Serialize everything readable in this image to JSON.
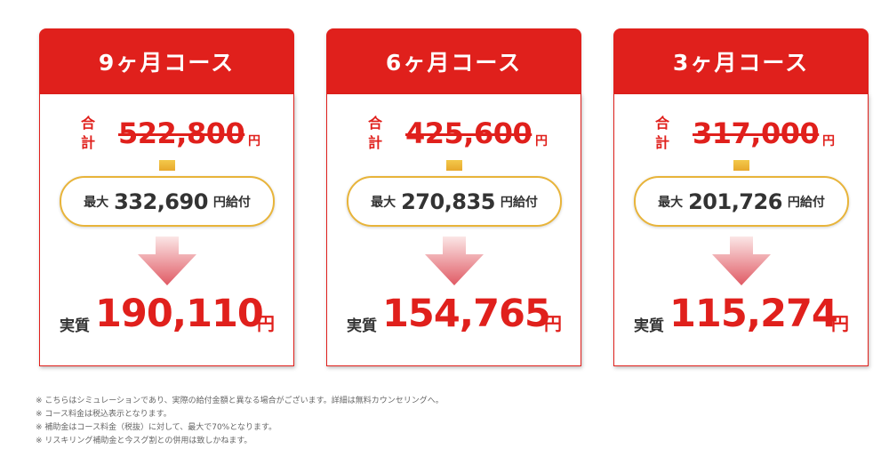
{
  "courses": [
    {
      "title": "9ヶ月コース",
      "total_label_1": "合",
      "total_label_2": "計",
      "original_price": "522,800",
      "original_unit": "円",
      "subsidy_prefix": "最大",
      "subsidy_amount": "332,690",
      "subsidy_suffix": "円給付",
      "real_label": "実質",
      "real_price": "190,110",
      "real_unit": "円"
    },
    {
      "title": "6ヶ月コース",
      "total_label_1": "合",
      "total_label_2": "計",
      "original_price": "425,600",
      "original_unit": "円",
      "subsidy_prefix": "最大",
      "subsidy_amount": "270,835",
      "subsidy_suffix": "円給付",
      "real_label": "実質",
      "real_price": "154,765",
      "real_unit": "円"
    },
    {
      "title": "3ヶ月コース",
      "total_label_1": "合",
      "total_label_2": "計",
      "original_price": "317,000",
      "original_unit": "円",
      "subsidy_prefix": "最大",
      "subsidy_amount": "201,726",
      "subsidy_suffix": "円給付",
      "real_label": "実質",
      "real_price": "115,274",
      "real_unit": "円"
    }
  ],
  "notes": [
    "※ こちらはシミュレーションであり、実際の給付金額と異なる場合がございます。詳細は無料カウンセリングへ。",
    "※ コース料金は税込表示となります。",
    "※ 補助金はコース料金（税抜）に対して、最大で70%となります。",
    "※ リスキリング補助金と今スグ割との併用は致しかねます。"
  ],
  "colors": {
    "brand_red": "#e0201c",
    "pill_border": "#e8b43a",
    "connector": "#e8a82c",
    "arrow_top": "#fbe6e6",
    "arrow_bottom": "#e05a64"
  },
  "icons": {
    "arrow": "down-arrow-icon"
  }
}
